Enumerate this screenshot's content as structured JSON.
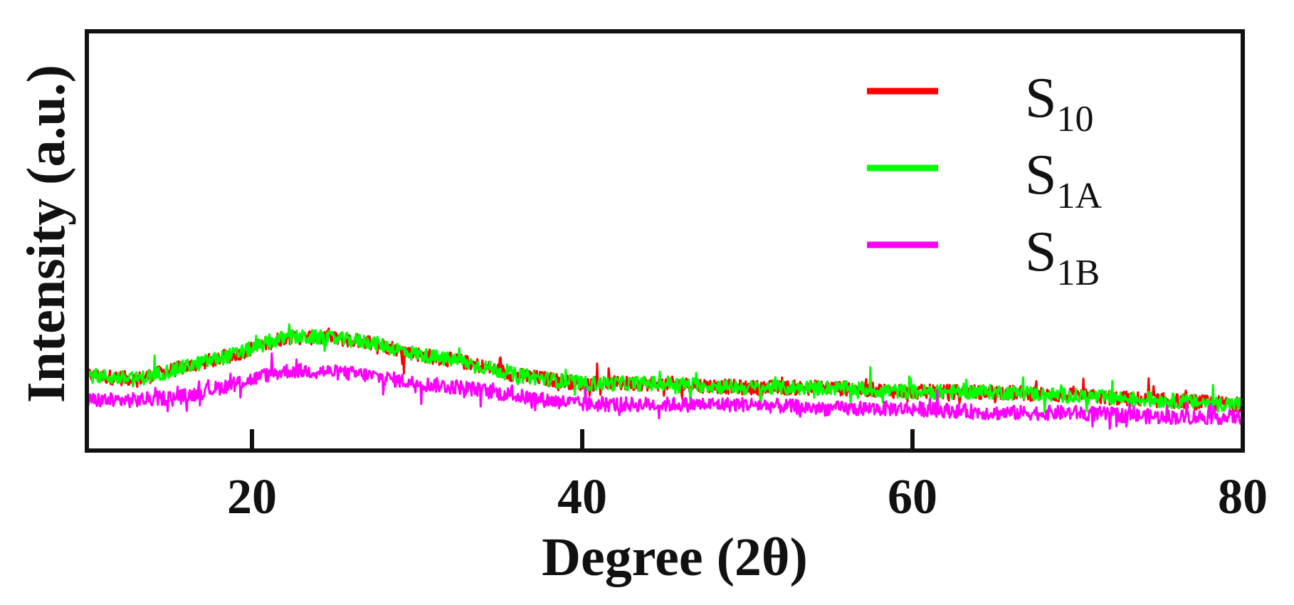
{
  "chart_data": {
    "type": "line",
    "xlabel": "Degree (2θ)",
    "ylabel": "Intensity (a.u.)",
    "xlim": [
      10,
      80
    ],
    "ylim": [
      0,
      1
    ],
    "x_ticks": [
      20,
      40,
      60,
      80
    ],
    "x_tick_labels": [
      "20",
      "40",
      "60",
      "80"
    ],
    "grid": false,
    "legend_position": "top-right",
    "series": [
      {
        "name": "S10",
        "base": "S",
        "sub": "10",
        "color": "#ff0000",
        "x": [
          10,
          13,
          16,
          19,
          22,
          24,
          27,
          30,
          33,
          36,
          40,
          45,
          50,
          55,
          60,
          65,
          70,
          75,
          80
        ],
        "y": [
          0.18,
          0.17,
          0.2,
          0.23,
          0.27,
          0.27,
          0.26,
          0.23,
          0.21,
          0.18,
          0.16,
          0.16,
          0.15,
          0.15,
          0.14,
          0.14,
          0.13,
          0.12,
          0.11
        ]
      },
      {
        "name": "S1A",
        "base": "S",
        "sub": "1A",
        "color": "#00ff00",
        "x": [
          10,
          13,
          16,
          19,
          22,
          24,
          27,
          30,
          33,
          36,
          40,
          45,
          50,
          55,
          60,
          65,
          70,
          75,
          80
        ],
        "y": [
          0.18,
          0.17,
          0.2,
          0.23,
          0.27,
          0.27,
          0.26,
          0.23,
          0.21,
          0.18,
          0.16,
          0.16,
          0.15,
          0.15,
          0.14,
          0.14,
          0.13,
          0.12,
          0.11
        ]
      },
      {
        "name": "S1B",
        "base": "S",
        "sub": "1B",
        "color": "#ff00ff",
        "x": [
          10,
          13,
          16,
          19,
          22,
          24,
          27,
          30,
          33,
          36,
          40,
          45,
          50,
          55,
          60,
          65,
          70,
          75,
          80
        ],
        "y": [
          0.12,
          0.12,
          0.13,
          0.16,
          0.19,
          0.19,
          0.18,
          0.16,
          0.15,
          0.13,
          0.11,
          0.11,
          0.11,
          0.1,
          0.1,
          0.09,
          0.09,
          0.08,
          0.08
        ]
      }
    ]
  }
}
